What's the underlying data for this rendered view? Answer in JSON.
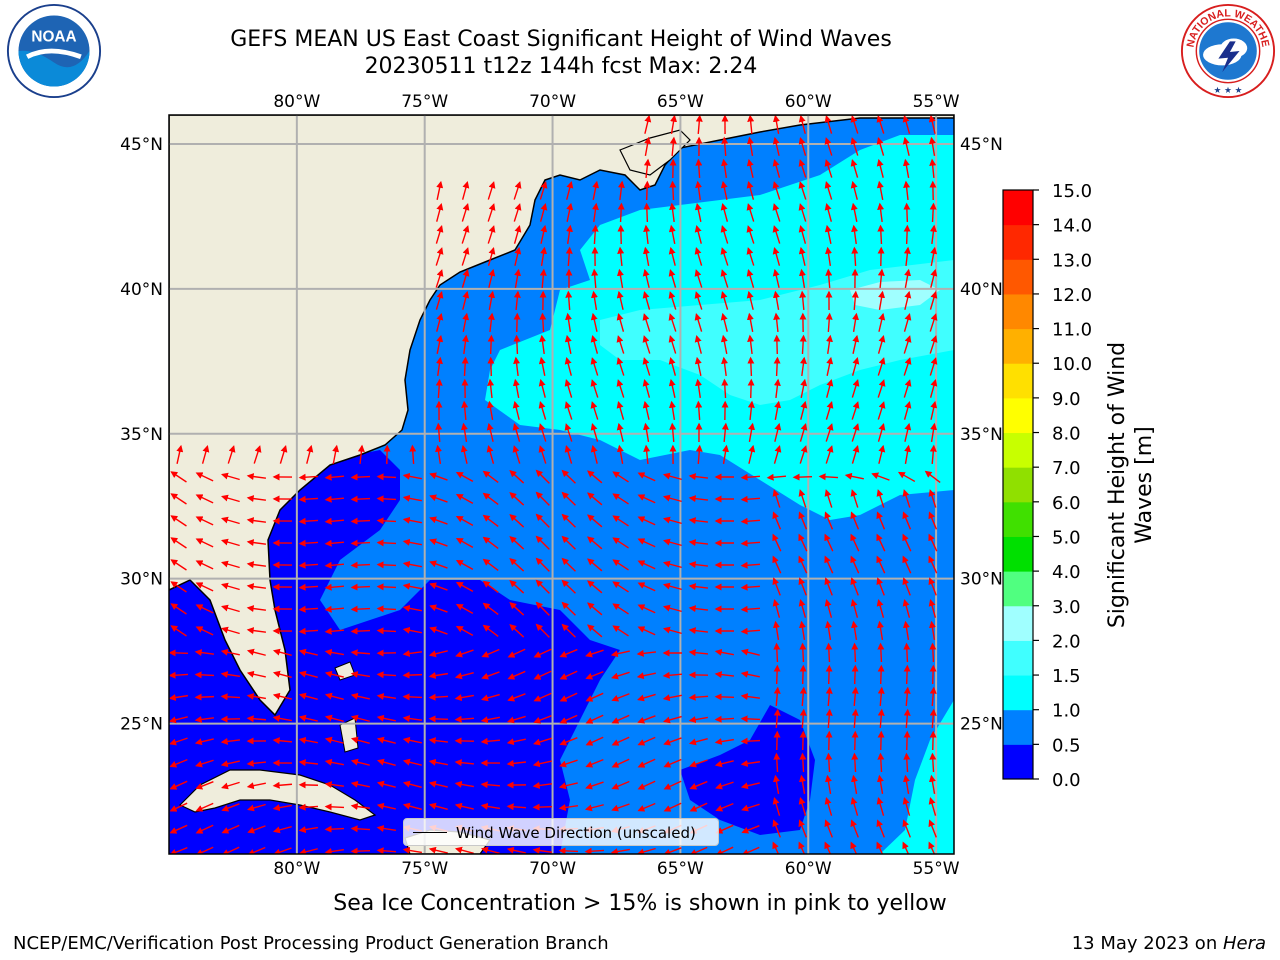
{
  "title": {
    "line1": "GEFS MEAN US East Coast Significant Height of Wind Waves",
    "line2": "20230511 t12z 144h fcst   Max: 2.24"
  },
  "logos": {
    "left": {
      "name": "NOAA",
      "ring_text": "NATIONAL OCEANIC AND ATMOSPHERIC ADMINISTRATION · U.S. DEPARTMENT OF COMMERCE",
      "center": "NOAA"
    },
    "right": {
      "name": "National Weather Service",
      "ring_text": "NATIONAL WEATHER SERVICE"
    }
  },
  "map": {
    "lon_labels": [
      "80°W",
      "75°W",
      "70°W",
      "65°W",
      "60°W",
      "55°W"
    ],
    "lat_labels": [
      "45°N",
      "40°N",
      "35°N",
      "30°N",
      "25°N"
    ],
    "lon_values": [
      -80,
      -75,
      -70,
      -65,
      -60,
      -55
    ],
    "lat_values": [
      45,
      40,
      35,
      30,
      25
    ],
    "extent": {
      "lon": [
        -85,
        -54.3
      ],
      "lat": [
        20.5,
        46
      ]
    },
    "colors": {
      "land": "#efeddc",
      "grid": "#b0b0b0",
      "arrow": "#ff0000",
      "coast": "#000000"
    }
  },
  "legend": {
    "label": "Wind Wave Direction (unscaled)"
  },
  "colorbar": {
    "label_line1": "Significant Height of Wind",
    "label_line2": "Waves [m]",
    "ticks": [
      "0.0",
      "0.5",
      "1.0",
      "1.5",
      "2.0",
      "3.0",
      "4.0",
      "5.0",
      "6.0",
      "7.0",
      "8.0",
      "9.0",
      "10.0",
      "11.0",
      "12.0",
      "13.0",
      "14.0",
      "15.0"
    ],
    "colors": [
      "#0000ff",
      "#0080ff",
      "#00ffff",
      "#40ffff",
      "#a0ffff",
      "#50ff80",
      "#00e000",
      "#40e000",
      "#90e000",
      "#c8ff00",
      "#ffff00",
      "#ffe000",
      "#ffb000",
      "#ff8800",
      "#ff5800",
      "#ff2800",
      "#ff0000"
    ]
  },
  "notes": {
    "sea_ice": "Sea Ice Concentration > 15% is shown in pink to yellow"
  },
  "footer": {
    "left": "NCEP/EMC/Verification Post Processing Product Generation Branch",
    "right_prefix": "13 May 2023 on ",
    "right_machine": "Hera"
  }
}
